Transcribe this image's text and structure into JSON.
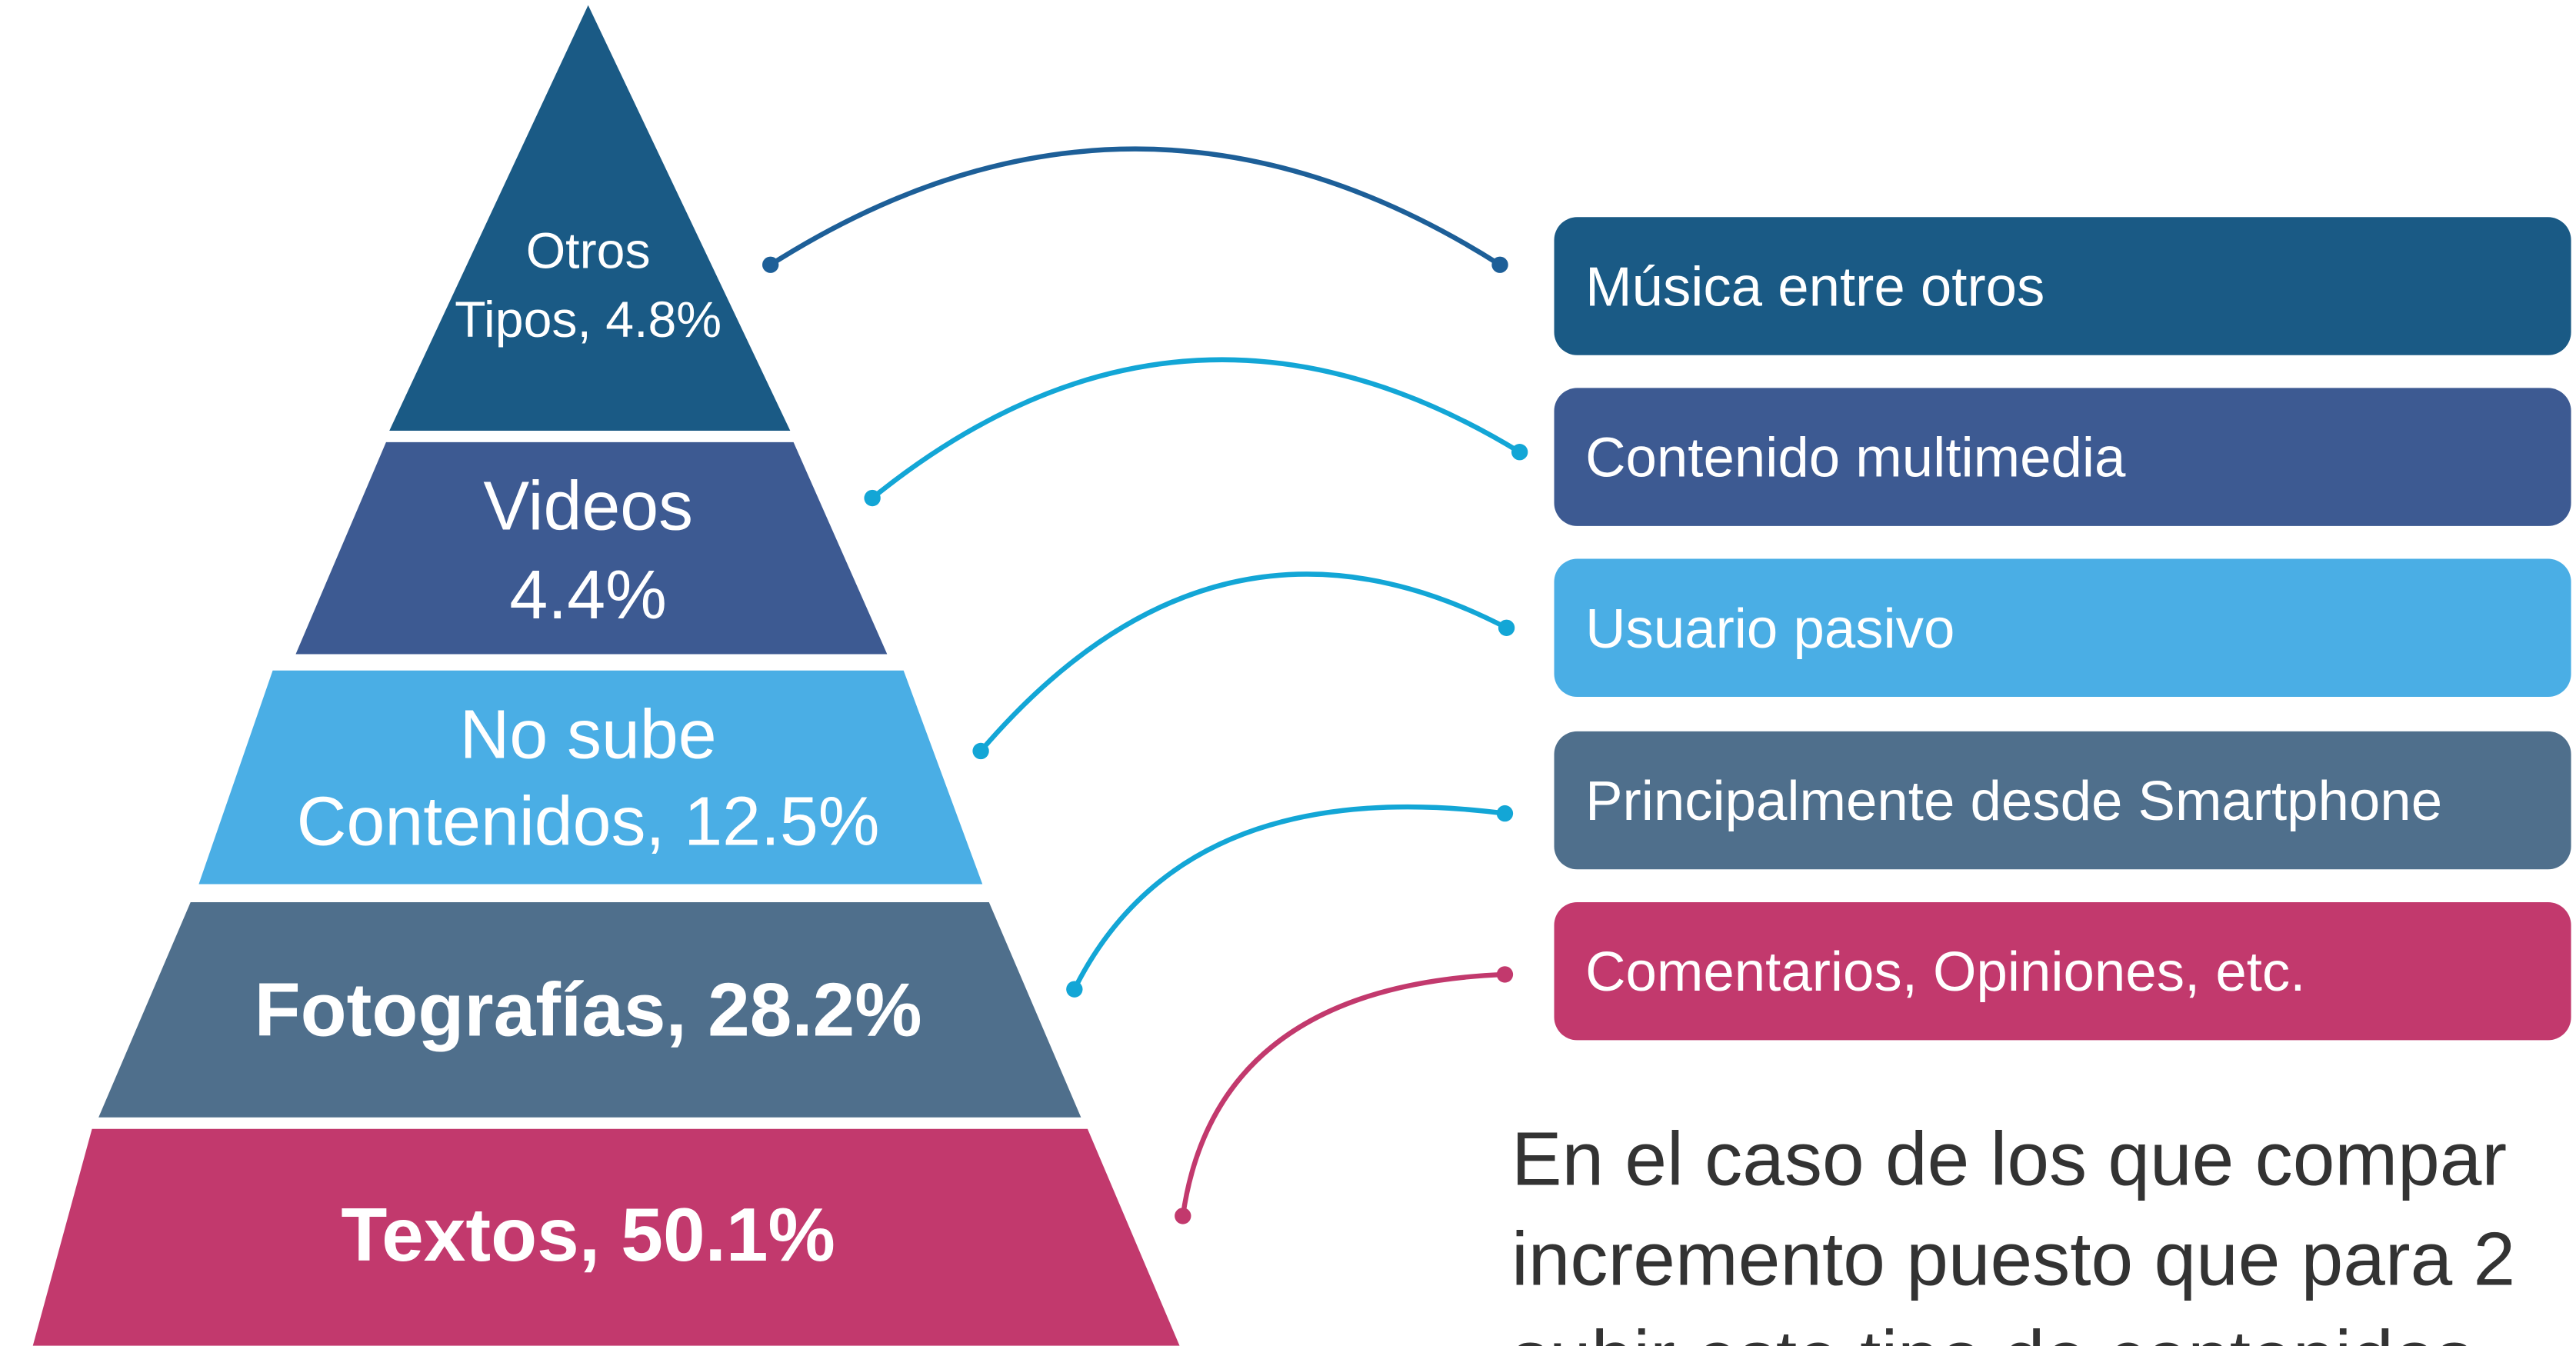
{
  "pyramid": [
    {
      "lines": [
        "Otros",
        "Tipos, 4.8%"
      ]
    },
    {
      "lines": [
        "Videos",
        "4.4%"
      ]
    },
    {
      "lines": [
        "No sube",
        "Contenidos, 12.5%"
      ]
    },
    {
      "lines": [
        "Fotografías, 28.2%"
      ]
    },
    {
      "lines": [
        "Textos, 50.1%"
      ]
    }
  ],
  "boxes": [
    "Música entre otros",
    "Contenido multimedia",
    "Usuario pasivo",
    "Principalmente desde Smartphone",
    "Comentarios, Opiniones, etc."
  ],
  "paragraph": [
    "En el caso de los que compar",
    "incremento puesto que para 2",
    "subir este tipo de contenidos"
  ]
}
